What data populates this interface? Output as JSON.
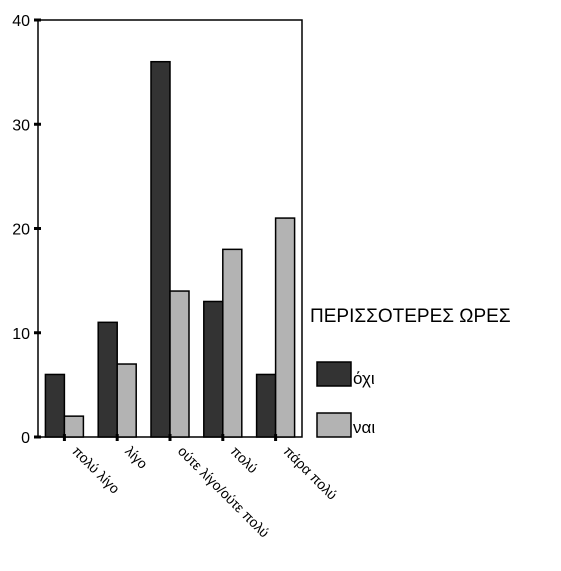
{
  "chart_data": {
    "type": "bar",
    "categories": [
      "πολύ λίγο",
      "λίγο",
      "ούτε λίγο/ούτε πολύ",
      "πολύ",
      "πάρα πολύ"
    ],
    "series": [
      {
        "name": "όχι",
        "values": [
          6,
          11,
          36,
          13,
          6
        ],
        "color": "#333333"
      },
      {
        "name": "ναι",
        "values": [
          2,
          7,
          14,
          18,
          21
        ],
        "color": "#b3b3b3"
      }
    ],
    "ylim": [
      0,
      40
    ],
    "yticks": [
      "0",
      "10",
      "20",
      "30",
      "40"
    ],
    "legend_title": "ΠΕΡΙΣΣΟΤΕΡΕΣ ΩΡΕΣ",
    "legend_position": "right",
    "grid": false
  }
}
